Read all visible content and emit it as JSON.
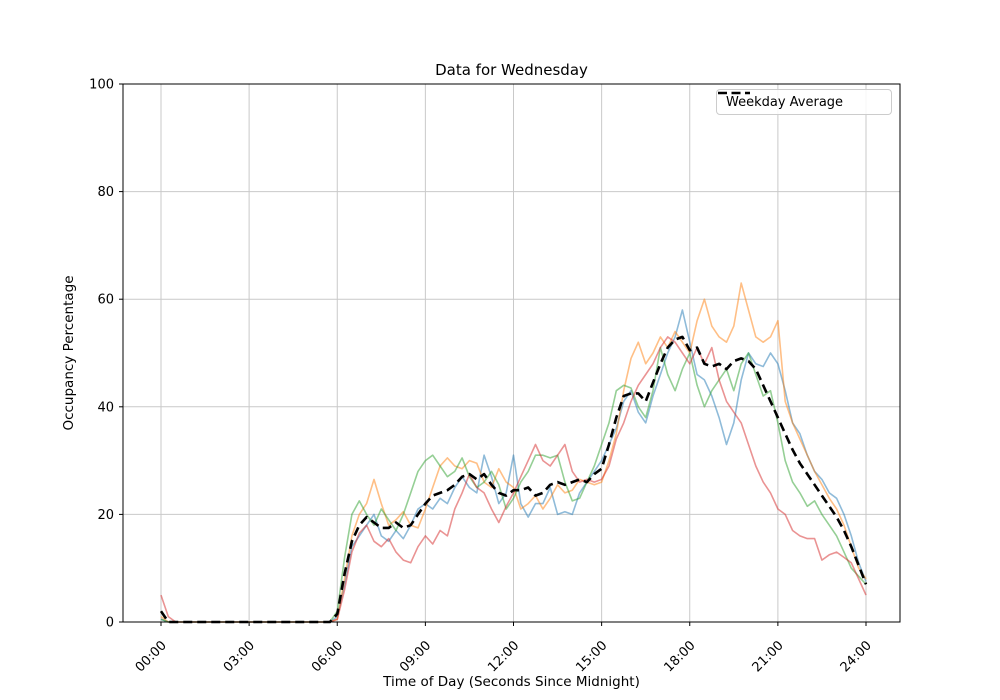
{
  "chart_data": {
    "type": "line",
    "title": "Data for Wednesday",
    "xlabel": "Time of Day (Seconds Since Midnight)",
    "ylabel": "Occupancy Percentage",
    "legend_label": "Weekday Average",
    "legend_position": "upper right",
    "grid": true,
    "grid_color": "#c9c9c9",
    "ylim": [
      0,
      100
    ],
    "ytick_values": [
      0,
      20,
      40,
      60,
      80,
      100
    ],
    "xtick_labels": [
      "00:00",
      "03:00",
      "06:00",
      "09:00",
      "12:00",
      "15:00",
      "18:00",
      "21:00",
      "24:00"
    ],
    "xtick_hours": [
      0,
      3,
      6,
      9,
      12,
      15,
      18,
      21,
      24
    ],
    "x_start_hour": 0,
    "x_step_hours": 0.25,
    "series": [
      {
        "id": "series-1",
        "color": "#1f77b4",
        "opacity": 0.5,
        "width": 1.6,
        "values": [
          0.5,
          0,
          0,
          0,
          0,
          0,
          0,
          0,
          0,
          0,
          0,
          0,
          0,
          0,
          0,
          0,
          0,
          0,
          0,
          0,
          0,
          0,
          0,
          0,
          1,
          7,
          14,
          16,
          18,
          20,
          16,
          15,
          17,
          15.5,
          18,
          21,
          22,
          21,
          23,
          22,
          25,
          27,
          25,
          24,
          31,
          27,
          22,
          24,
          31,
          22,
          19.5,
          22,
          22,
          25,
          20,
          20.5,
          20,
          24,
          26,
          28,
          30,
          33,
          36,
          41,
          43,
          39,
          37,
          42,
          46,
          50,
          53,
          58,
          52,
          46,
          45,
          42,
          38,
          33,
          37,
          45,
          50,
          48,
          47.5,
          50,
          48,
          43,
          37,
          35,
          31,
          28,
          26.5,
          24,
          23,
          20,
          16,
          11,
          7.5
        ]
      },
      {
        "id": "series-2",
        "color": "#ff7f0e",
        "opacity": 0.5,
        "width": 1.6,
        "values": [
          1,
          0,
          0,
          0,
          0,
          0,
          0,
          0,
          0,
          0,
          0,
          0,
          0,
          0,
          0,
          0,
          0,
          0,
          0,
          0,
          0,
          0,
          0,
          0,
          0.5,
          8,
          16,
          20,
          22,
          26.5,
          22,
          18,
          19,
          20.5,
          18,
          17.5,
          21,
          25,
          29,
          30.5,
          29,
          28.5,
          30,
          29.5,
          26,
          25,
          28.5,
          26,
          25,
          21,
          22,
          23.5,
          21,
          23,
          25.5,
          24,
          24.5,
          26.5,
          26,
          25.5,
          26,
          30,
          35,
          43,
          49,
          52,
          48,
          50,
          53,
          51,
          54,
          52,
          50,
          56,
          60,
          55,
          53,
          52,
          55,
          63,
          58,
          53,
          52,
          53,
          56,
          41,
          37,
          34,
          31,
          28,
          25.5,
          23,
          21,
          18,
          14,
          10,
          8
        ]
      },
      {
        "id": "series-3",
        "color": "#2ca02c",
        "opacity": 0.5,
        "width": 1.6,
        "values": [
          0.5,
          0,
          0,
          0,
          0,
          0,
          0,
          0,
          0,
          0,
          0,
          0,
          0,
          0,
          0,
          0,
          0,
          0,
          0,
          0,
          0,
          0,
          0,
          0,
          2,
          12,
          20,
          22.5,
          20,
          18,
          21,
          19,
          17,
          20,
          24,
          28,
          30,
          31,
          29,
          27,
          28,
          30.5,
          27,
          25,
          26,
          28,
          25.5,
          21,
          23,
          26,
          28,
          31,
          31,
          30.5,
          31,
          26,
          22.5,
          23,
          26,
          29,
          33,
          37,
          43,
          44,
          43.5,
          40,
          38,
          43,
          51,
          46,
          43,
          47,
          50,
          44,
          40,
          43,
          45,
          47,
          43,
          48,
          50,
          46,
          42,
          43,
          37,
          30,
          26,
          24,
          21.5,
          22.5,
          20,
          18,
          16,
          13,
          10,
          8.5,
          7
        ]
      },
      {
        "id": "series-4",
        "color": "#d62728",
        "opacity": 0.5,
        "width": 1.6,
        "values": [
          5,
          1,
          0,
          0,
          0,
          0,
          0,
          0,
          0,
          0,
          0,
          0,
          0,
          0,
          0,
          0,
          0,
          0,
          0,
          0,
          0,
          0,
          0,
          0,
          0.5,
          6,
          13,
          16.5,
          18,
          15,
          14,
          15.5,
          13,
          11.5,
          11,
          14,
          16,
          14.5,
          17,
          16,
          21,
          24,
          27.5,
          25,
          24,
          21,
          18.5,
          21.5,
          24,
          27,
          30,
          33,
          30,
          29,
          31,
          33,
          28,
          26,
          26.5,
          26,
          26.5,
          29,
          34,
          37,
          41,
          44,
          46,
          48,
          51,
          53,
          52,
          50,
          48,
          51,
          48,
          51,
          45,
          41,
          39,
          37,
          33,
          29,
          26,
          24,
          21,
          20,
          17,
          16,
          15.5,
          15.5,
          11.5,
          12.5,
          13,
          12,
          11,
          8,
          5
        ]
      },
      {
        "id": "weekday-average",
        "label": "Weekday Average",
        "color": "#000000",
        "opacity": 1,
        "width": 2.6,
        "dash": "9 5",
        "values": [
          2,
          0,
          0,
          0,
          0,
          0,
          0,
          0,
          0,
          0,
          0,
          0,
          0,
          0,
          0,
          0,
          0,
          0,
          0,
          0,
          0,
          0,
          0,
          0,
          1.5,
          9,
          15,
          18,
          19.5,
          18.5,
          17.5,
          17.5,
          18.5,
          17.5,
          18,
          20,
          22,
          23.5,
          24,
          24.5,
          25.5,
          27,
          27.5,
          26.5,
          27.5,
          25.5,
          24,
          23.5,
          24.5,
          24.5,
          25,
          23.5,
          24,
          25.5,
          26,
          25.5,
          26,
          26.5,
          26,
          27.5,
          28.5,
          33,
          38,
          42,
          42.5,
          42.5,
          41,
          44.5,
          48,
          51,
          52.5,
          53,
          50.5,
          51,
          48,
          47.5,
          48,
          47,
          48.5,
          49,
          48.5,
          47,
          44,
          41,
          38,
          35,
          32,
          29.5,
          27.5,
          25.5,
          23.5,
          21.5,
          19.5,
          17,
          14,
          10.5,
          7
        ]
      }
    ]
  }
}
